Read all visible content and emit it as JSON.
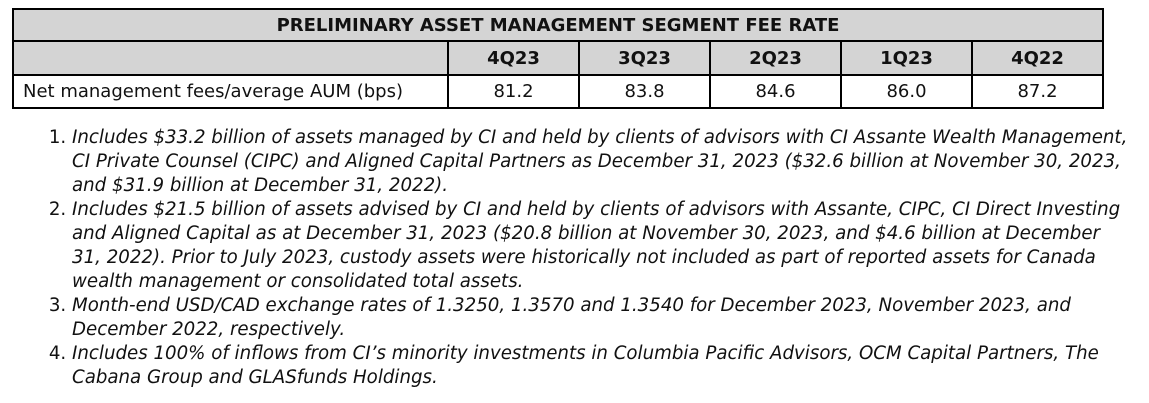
{
  "table": {
    "title": "PRELIMINARY ASSET MANAGEMENT SEGMENT FEE RATE",
    "columns": [
      "4Q23",
      "3Q23",
      "2Q23",
      "1Q23",
      "4Q22"
    ],
    "rows": [
      {
        "label": "Net management fees/average AUM (bps)",
        "values": [
          "81.2",
          "83.8",
          "84.6",
          "86.0",
          "87.2"
        ]
      }
    ]
  },
  "footnotes": [
    "Includes $33.2 billion of assets managed by CI and held by clients of advisors with CI Assante Wealth Management, CI Private Counsel (CIPC) and Aligned Capital Partners as December 31, 2023 ($32.6 billion at November 30, 2023, and $31.9 billion at December 31, 2022).",
    "Includes $21.5 billion of assets advised by CI and held by clients of advisors with Assante, CIPC, CI Direct Investing and Aligned Capital as at December 31, 2023 ($20.8 billion at November 30, 2023, and $4.6 billion at December 31, 2022). Prior to July 2023, custody assets were historically not included as part of reported assets for Canada wealth management or consolidated total assets.",
    "Month-end USD/CAD exchange rates of 1.3250, 1.3570 and 1.3540 for December 2023, November 2023, and December 2022, respectively.",
    "Includes 100% of inflows from CI’s minority investments in Columbia Pacific Advisors, OCM Capital Partners, The Cabana Group and GLASfunds Holdings."
  ]
}
